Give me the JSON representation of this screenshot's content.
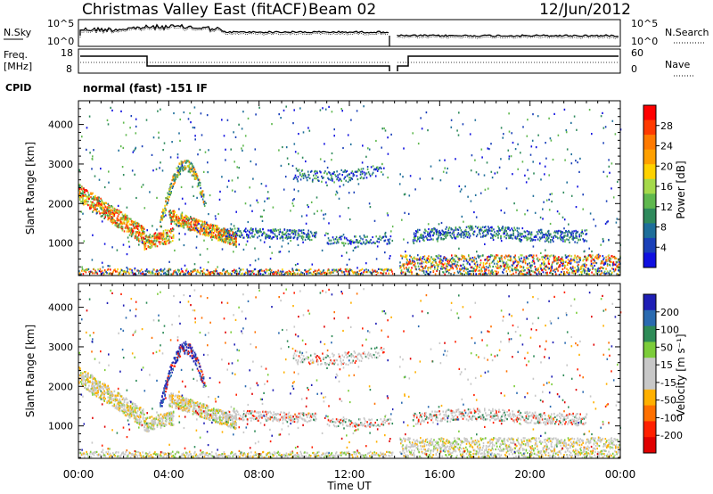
{
  "header": {
    "title": "Christmas Valley East (fitACF)",
    "beam": "Beam 02",
    "date": "12/Jun/2012"
  },
  "noise_panel": {
    "left_label": "N.Sky",
    "right_label": "N.Search",
    "left_ticks": [
      "10^5",
      "10^0"
    ],
    "right_ticks": [
      "10^5",
      "10^0"
    ]
  },
  "freq_panel": {
    "left_label_1": "Freq.",
    "left_label_2": "[MHz]",
    "right_label": "Nave",
    "left_ticks": [
      "18",
      "8"
    ],
    "right_ticks": [
      "60",
      "0"
    ]
  },
  "cpid": {
    "label": "CPID",
    "value": "normal (fast) -151 IF"
  },
  "power_colorbar": {
    "label": "Power [dB]",
    "ticks": [
      "28",
      "24",
      "20",
      "16",
      "12",
      "8",
      "4"
    ],
    "colors": [
      "#ff0000",
      "#ff3a00",
      "#ff7a00",
      "#ffa000",
      "#ffd200",
      "#a5d94a",
      "#5fb84e",
      "#2f8a5c",
      "#1e6e9a",
      "#1a40b8",
      "#1010e0"
    ]
  },
  "velocity_colorbar": {
    "label": "Velocity [m s⁻¹]",
    "ticks": [
      "200",
      "100",
      "50",
      "15",
      "-15",
      "-50",
      "-100",
      "-200"
    ],
    "colors": [
      "#1f1fb5",
      "#2a6ab0",
      "#2e8b57",
      "#7ccc3a",
      "#c8c8c8",
      "#c8c8c8",
      "#ffb000",
      "#ff7000",
      "#ff2000",
      "#e00000"
    ]
  },
  "chart_data": [
    {
      "type": "heatmap",
      "name": "Power",
      "ylabel": "Slant Range [km]",
      "xlabel": "",
      "ylim": [
        180,
        4600
      ],
      "yticks": [
        "1000",
        "2000",
        "3000",
        "4000"
      ],
      "xticks": []
    },
    {
      "type": "heatmap",
      "name": "Velocity",
      "ylabel": "Slant Range [km]",
      "xlabel": "Time UT",
      "ylim": [
        180,
        4600
      ],
      "yticks": [
        "1000",
        "2000",
        "3000",
        "4000"
      ],
      "xticks": [
        "00:00",
        "04:00",
        "08:00",
        "12:00",
        "16:00",
        "20:00",
        "00:00"
      ]
    }
  ]
}
